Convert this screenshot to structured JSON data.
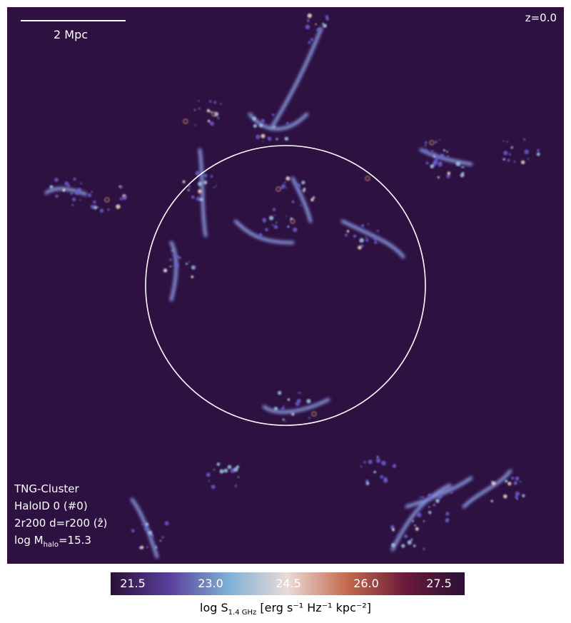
{
  "scale_bar": {
    "label": "2 Mpc"
  },
  "redshift": {
    "label": "z=0.0"
  },
  "info": {
    "simulation": "TNG-Cluster",
    "halo": "HaloID 0 (#0)",
    "projection": "2r200 d=r200 (ẑ)",
    "mass_prefix": "log M",
    "mass_sub": "halo",
    "mass_value": "=15.3"
  },
  "colorbar": {
    "ticks": [
      "21.5",
      "23.0",
      "24.5",
      "26.0",
      "27.5"
    ],
    "label_prefix": "log S",
    "label_sub": "1.4 GHz",
    "label_units": "[erg s⁻¹ Hz⁻¹ kpc⁻²]",
    "colors": [
      "#2b1038",
      "#5a3f9c",
      "#7fb0d6",
      "#eadbd8",
      "#c56a4d",
      "#6a1a3a",
      "#2b1038"
    ]
  },
  "colors": {
    "background": "#2d1140",
    "circle": "#ffffff"
  }
}
